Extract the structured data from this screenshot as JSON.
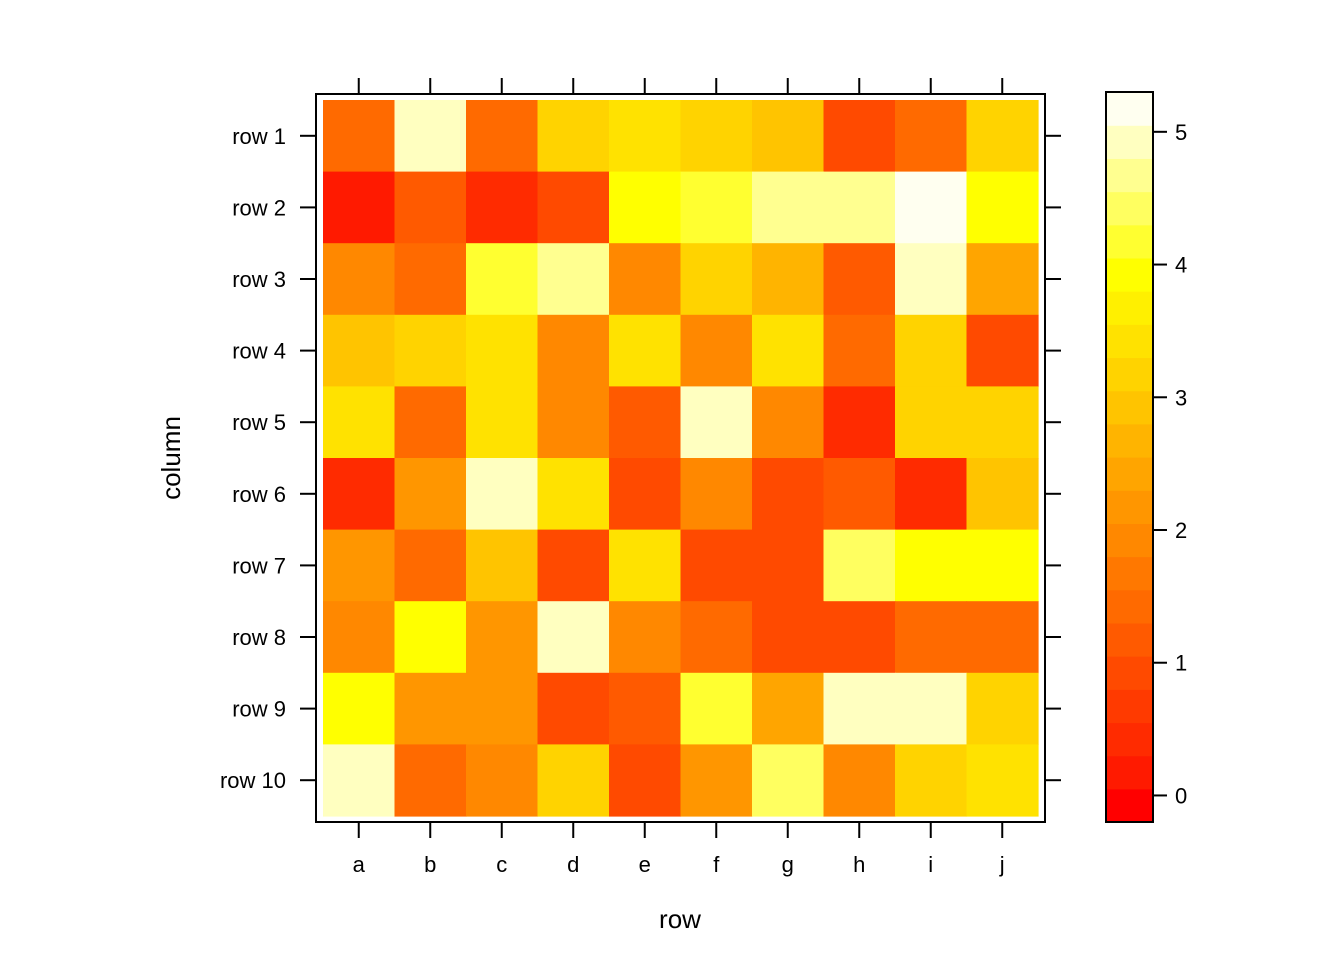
{
  "chart_data": {
    "type": "heatmap",
    "title": "",
    "xlabel": "row",
    "ylabel": "column",
    "x_categories": [
      "a",
      "b",
      "c",
      "d",
      "e",
      "f",
      "g",
      "h",
      "i",
      "j"
    ],
    "y_categories": [
      "row 1",
      "row 2",
      "row 3",
      "row 4",
      "row 5",
      "row 6",
      "row 7",
      "row 8",
      "row 9",
      "row 10"
    ],
    "values": [
      [
        1.5,
        4.9,
        1.5,
        3.1,
        3.4,
        3.1,
        2.9,
        0.8,
        1.5,
        3.1
      ],
      [
        0.1,
        1.2,
        0.5,
        0.8,
        3.9,
        4.2,
        4.6,
        4.6,
        5.2,
        3.9
      ],
      [
        1.8,
        1.5,
        4.1,
        4.6,
        1.8,
        3.1,
        2.6,
        1.2,
        4.9,
        2.4
      ],
      [
        2.9,
        3.1,
        3.4,
        1.8,
        3.4,
        1.8,
        3.4,
        1.5,
        3.1,
        0.8
      ],
      [
        3.4,
        1.5,
        3.4,
        1.8,
        1.2,
        4.9,
        1.8,
        0.5,
        3.1,
        3.1
      ],
      [
        0.5,
        2.1,
        4.9,
        3.4,
        0.8,
        1.8,
        0.8,
        1.2,
        0.5,
        2.9
      ],
      [
        2.1,
        1.5,
        2.9,
        0.8,
        3.4,
        0.8,
        0.8,
        4.4,
        3.9,
        3.9
      ],
      [
        1.8,
        3.9,
        2.1,
        4.9,
        1.8,
        1.5,
        0.8,
        0.8,
        1.5,
        1.5
      ],
      [
        3.9,
        2.1,
        2.1,
        0.8,
        1.2,
        4.1,
        2.4,
        4.9,
        4.9,
        3.1
      ],
      [
        4.9,
        1.5,
        1.8,
        3.1,
        0.8,
        2.1,
        4.4,
        1.8,
        3.1,
        3.4
      ]
    ],
    "colorbar": {
      "min": -0.2,
      "max": 5.3,
      "ticks": [
        "0",
        "1",
        "2",
        "3",
        "4",
        "5"
      ],
      "palette": [
        "#FF0000",
        "#FF1A00",
        "#FF2B00",
        "#FF3A00",
        "#FF4A00",
        "#FF5A00",
        "#FF6A00",
        "#FF7800",
        "#FF8800",
        "#FF9600",
        "#FFA500",
        "#FFB400",
        "#FFC400",
        "#FFD300",
        "#FFE200",
        "#FFF000",
        "#FFFF00",
        "#FFFF30",
        "#FFFF60",
        "#FFFF90",
        "#FFFFC0",
        "#FFFFF0"
      ]
    },
    "grid": false
  }
}
